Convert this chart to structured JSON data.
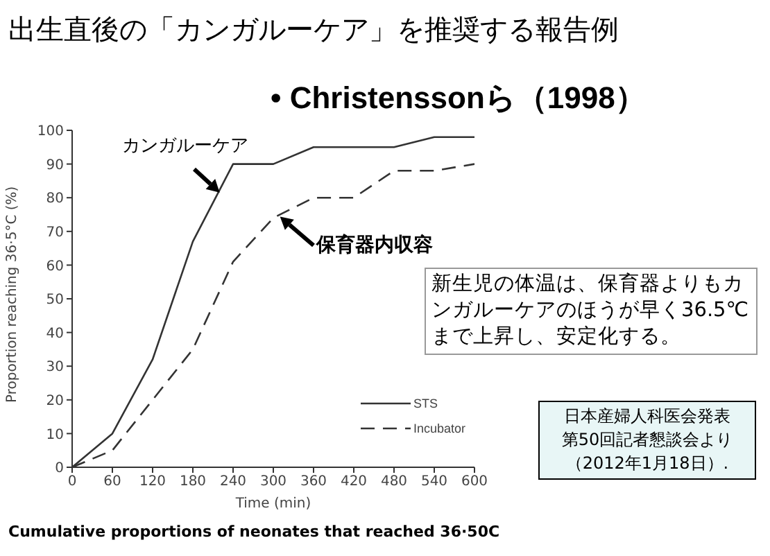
{
  "chart_data": {
    "type": "line",
    "title": "出生直後の「カンガルーケア」を推奨する報告例",
    "subtitle": "• Christenssonら（1998）",
    "xlabel": "Time (min)",
    "ylabel": "Proportion reaching 36·5°C (%)",
    "x": [
      0,
      60,
      120,
      180,
      240,
      300,
      360,
      420,
      480,
      540,
      600
    ],
    "series": [
      {
        "name": "STS",
        "color": "#333333",
        "line_style": "solid",
        "values": [
          0,
          10,
          32,
          67,
          90,
          90,
          95,
          95,
          95,
          98,
          98
        ]
      },
      {
        "name": "Incubator",
        "color": "#333333",
        "line_style": "dashed",
        "values": [
          0,
          5,
          20,
          35,
          61,
          74,
          80,
          80,
          88,
          88,
          90
        ]
      }
    ],
    "xlim": [
      0,
      600
    ],
    "xticks": [
      0,
      60,
      120,
      180,
      240,
      300,
      360,
      420,
      480,
      540,
      600
    ],
    "ylim": [
      0,
      100
    ],
    "yticks": [
      0,
      10,
      20,
      30,
      40,
      50,
      60,
      70,
      80,
      90,
      100
    ],
    "grid": false,
    "legend": "bottom right",
    "marker": "none",
    "annotations": [
      {
        "text": "カンガルーケア",
        "x": 220,
        "y": 82
      },
      {
        "text": "保育器内収容",
        "x": 310,
        "y": 75
      },
      "新生児の体温は、保育器よりもカンガルーケアのほうが早く36.5℃まで上昇し、安定化する。",
      "日本産婦人科医会発表第50回記者懇談会より（2012年1月18日）.",
      "Cumulative proportions of neonates that reached 36·50C"
    ]
  }
}
